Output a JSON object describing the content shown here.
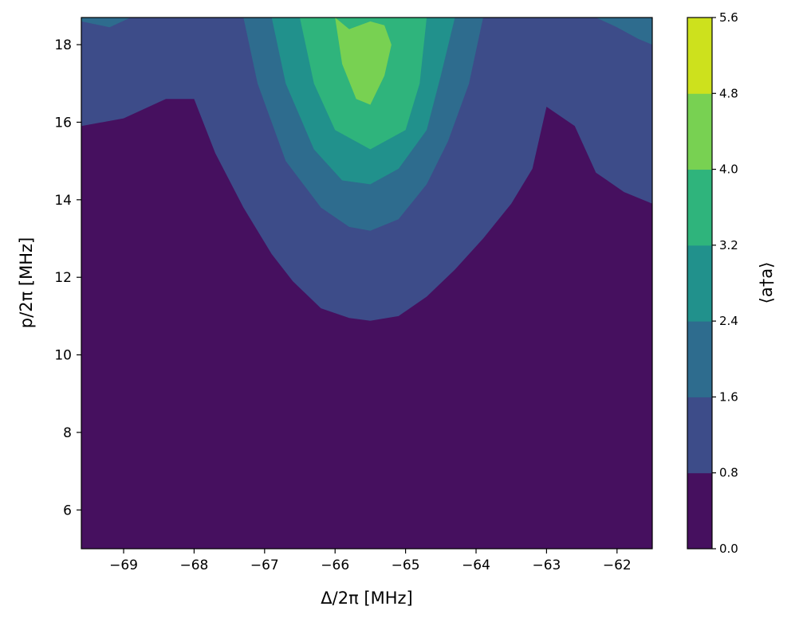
{
  "chart_data": {
    "type": "contourf",
    "xlabel": "Δ/2π [MHz]",
    "ylabel": "p/2π [MHz]",
    "xlim": [
      -69.6,
      -61.5
    ],
    "ylim": [
      5.0,
      18.7
    ],
    "xticks": [
      -69,
      -68,
      -67,
      -66,
      -65,
      -64,
      -63,
      -62
    ],
    "xtick_labels": [
      "−69",
      "−68",
      "−67",
      "−66",
      "−65",
      "−64",
      "−63",
      "−62"
    ],
    "yticks": [
      6,
      8,
      10,
      12,
      14,
      16,
      18
    ],
    "ytick_labels": [
      "6",
      "8",
      "10",
      "12",
      "14",
      "16",
      "18"
    ],
    "colorbar": {
      "label": "⟨a†a⟩",
      "levels": [
        0.0,
        0.8,
        1.6,
        2.4,
        3.2,
        4.0,
        4.8,
        5.6
      ],
      "tick_labels": [
        "0.0",
        "0.8",
        "1.6",
        "2.4",
        "3.2",
        "4.0",
        "4.8",
        "5.6"
      ],
      "colors": [
        "#46105f",
        "#3d4c89",
        "#2e6c8e",
        "#21918c",
        "#2fb47c",
        "#78d152",
        "#cde11d"
      ]
    },
    "grid": false,
    "contours": [
      {
        "level": 0.8,
        "points": [
          [
            -69.6,
            15.9
          ],
          [
            -69.0,
            16.1
          ],
          [
            -68.4,
            16.6
          ],
          [
            -68.0,
            16.6
          ],
          [
            -67.7,
            15.2
          ],
          [
            -67.3,
            13.8
          ],
          [
            -66.9,
            12.6
          ],
          [
            -66.6,
            11.9
          ],
          [
            -66.2,
            11.2
          ],
          [
            -65.8,
            10.95
          ],
          [
            -65.5,
            10.88
          ],
          [
            -65.1,
            11.0
          ],
          [
            -64.7,
            11.5
          ],
          [
            -64.3,
            12.2
          ],
          [
            -63.9,
            13.0
          ],
          [
            -63.5,
            13.9
          ],
          [
            -63.2,
            14.8
          ],
          [
            -63.0,
            16.4
          ],
          [
            -62.6,
            15.9
          ],
          [
            -62.3,
            14.7
          ],
          [
            -61.9,
            14.2
          ],
          [
            -61.5,
            13.9
          ],
          [
            -61.5,
            18.7
          ],
          [
            -69.6,
            18.7
          ]
        ]
      },
      {
        "level": 1.6,
        "points": [
          [
            -67.3,
            18.7
          ],
          [
            -67.1,
            17.0
          ],
          [
            -66.7,
            15.0
          ],
          [
            -66.2,
            13.8
          ],
          [
            -65.8,
            13.3
          ],
          [
            -65.5,
            13.2
          ],
          [
            -65.1,
            13.5
          ],
          [
            -64.7,
            14.4
          ],
          [
            -64.4,
            15.5
          ],
          [
            -64.1,
            17.0
          ],
          [
            -63.9,
            18.7
          ]
        ]
      },
      {
        "level": 2.4,
        "points": [
          [
            -66.9,
            18.7
          ],
          [
            -66.7,
            17.0
          ],
          [
            -66.3,
            15.3
          ],
          [
            -65.9,
            14.5
          ],
          [
            -65.5,
            14.4
          ],
          [
            -65.1,
            14.8
          ],
          [
            -64.7,
            15.8
          ],
          [
            -64.5,
            17.2
          ],
          [
            -64.3,
            18.7
          ]
        ]
      },
      {
        "level": 3.2,
        "points": [
          [
            -66.5,
            18.7
          ],
          [
            -66.3,
            17.0
          ],
          [
            -66.0,
            15.8
          ],
          [
            -65.5,
            15.3
          ],
          [
            -65.0,
            15.8
          ],
          [
            -64.8,
            17.0
          ],
          [
            -64.7,
            18.7
          ]
        ]
      },
      {
        "level": 4.0,
        "points": [
          [
            -66.0,
            18.7
          ],
          [
            -65.9,
            17.5
          ],
          [
            -65.7,
            16.6
          ],
          [
            -65.5,
            16.45
          ],
          [
            -65.3,
            17.2
          ],
          [
            -65.2,
            18.0
          ],
          [
            -65.3,
            18.5
          ],
          [
            -65.5,
            18.6
          ],
          [
            -65.8,
            18.4
          ]
        ]
      },
      {
        "level": 1.6,
        "points": [
          [
            -69.6,
            18.7
          ],
          [
            -69.6,
            18.6
          ],
          [
            -69.2,
            18.45
          ],
          [
            -68.9,
            18.7
          ]
        ]
      },
      {
        "level": 1.6,
        "points": [
          [
            -62.3,
            18.7
          ],
          [
            -62.0,
            18.45
          ],
          [
            -61.7,
            18.15
          ],
          [
            -61.5,
            18.0
          ],
          [
            -61.5,
            18.7
          ]
        ]
      }
    ]
  }
}
